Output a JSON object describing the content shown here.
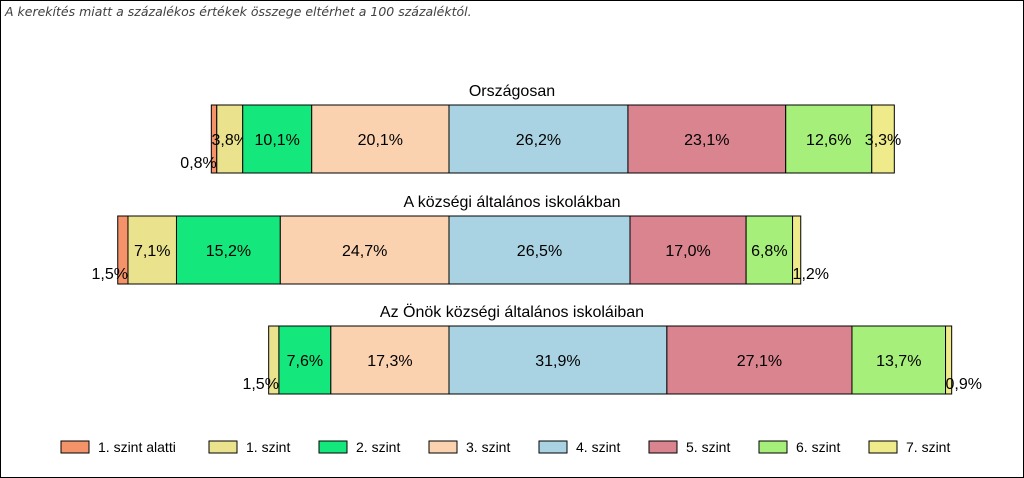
{
  "note": "A kerekítés miatt a  százalékos értékek összege eltérhet a 100 százaléktól.",
  "chart_data": {
    "type": "bar",
    "orientation": "horizontal-stacked-diverging",
    "legend_position": "bottom",
    "series": [
      {
        "name": "1. szint alatti",
        "color": "#F4936A"
      },
      {
        "name": "1. szint",
        "color": "#EBE28E"
      },
      {
        "name": "2. szint",
        "color": "#14E87C"
      },
      {
        "name": "3. szint",
        "color": "#FAD2B0"
      },
      {
        "name": "4. szint",
        "color": "#A9D3E2"
      },
      {
        "name": "5. szint",
        "color": "#D9848F"
      },
      {
        "name": "6. szint",
        "color": "#A6EF7A"
      },
      {
        "name": "7. szint",
        "color": "#EFEA8A"
      }
    ],
    "bars": [
      {
        "title": "Országosan",
        "values": [
          0.8,
          3.8,
          10.1,
          20.1,
          26.2,
          23.1,
          12.6,
          3.3
        ],
        "labels": [
          "0,8%",
          "3,8%",
          "10,1%",
          "20,1%",
          "26,2%",
          "23,1%",
          "12,6%",
          "3,3%"
        ]
      },
      {
        "title": "A községi általános iskolákban",
        "values": [
          1.5,
          7.1,
          15.2,
          24.7,
          26.5,
          17.0,
          6.8,
          1.2
        ],
        "labels": [
          "1,5%",
          "7,1%",
          "15,2%",
          "24,7%",
          "26,5%",
          "17,0%",
          "6,8%",
          "1,2%"
        ]
      },
      {
        "title": "Az Önök községi általános iskoláiban",
        "values": [
          0.0,
          1.5,
          7.6,
          17.3,
          31.9,
          27.1,
          13.7,
          0.9
        ],
        "labels": [
          "",
          "1,5%",
          "7,6%",
          "17,3%",
          "31,9%",
          "27,1%",
          "13,7%",
          "0,9%"
        ]
      }
    ]
  }
}
